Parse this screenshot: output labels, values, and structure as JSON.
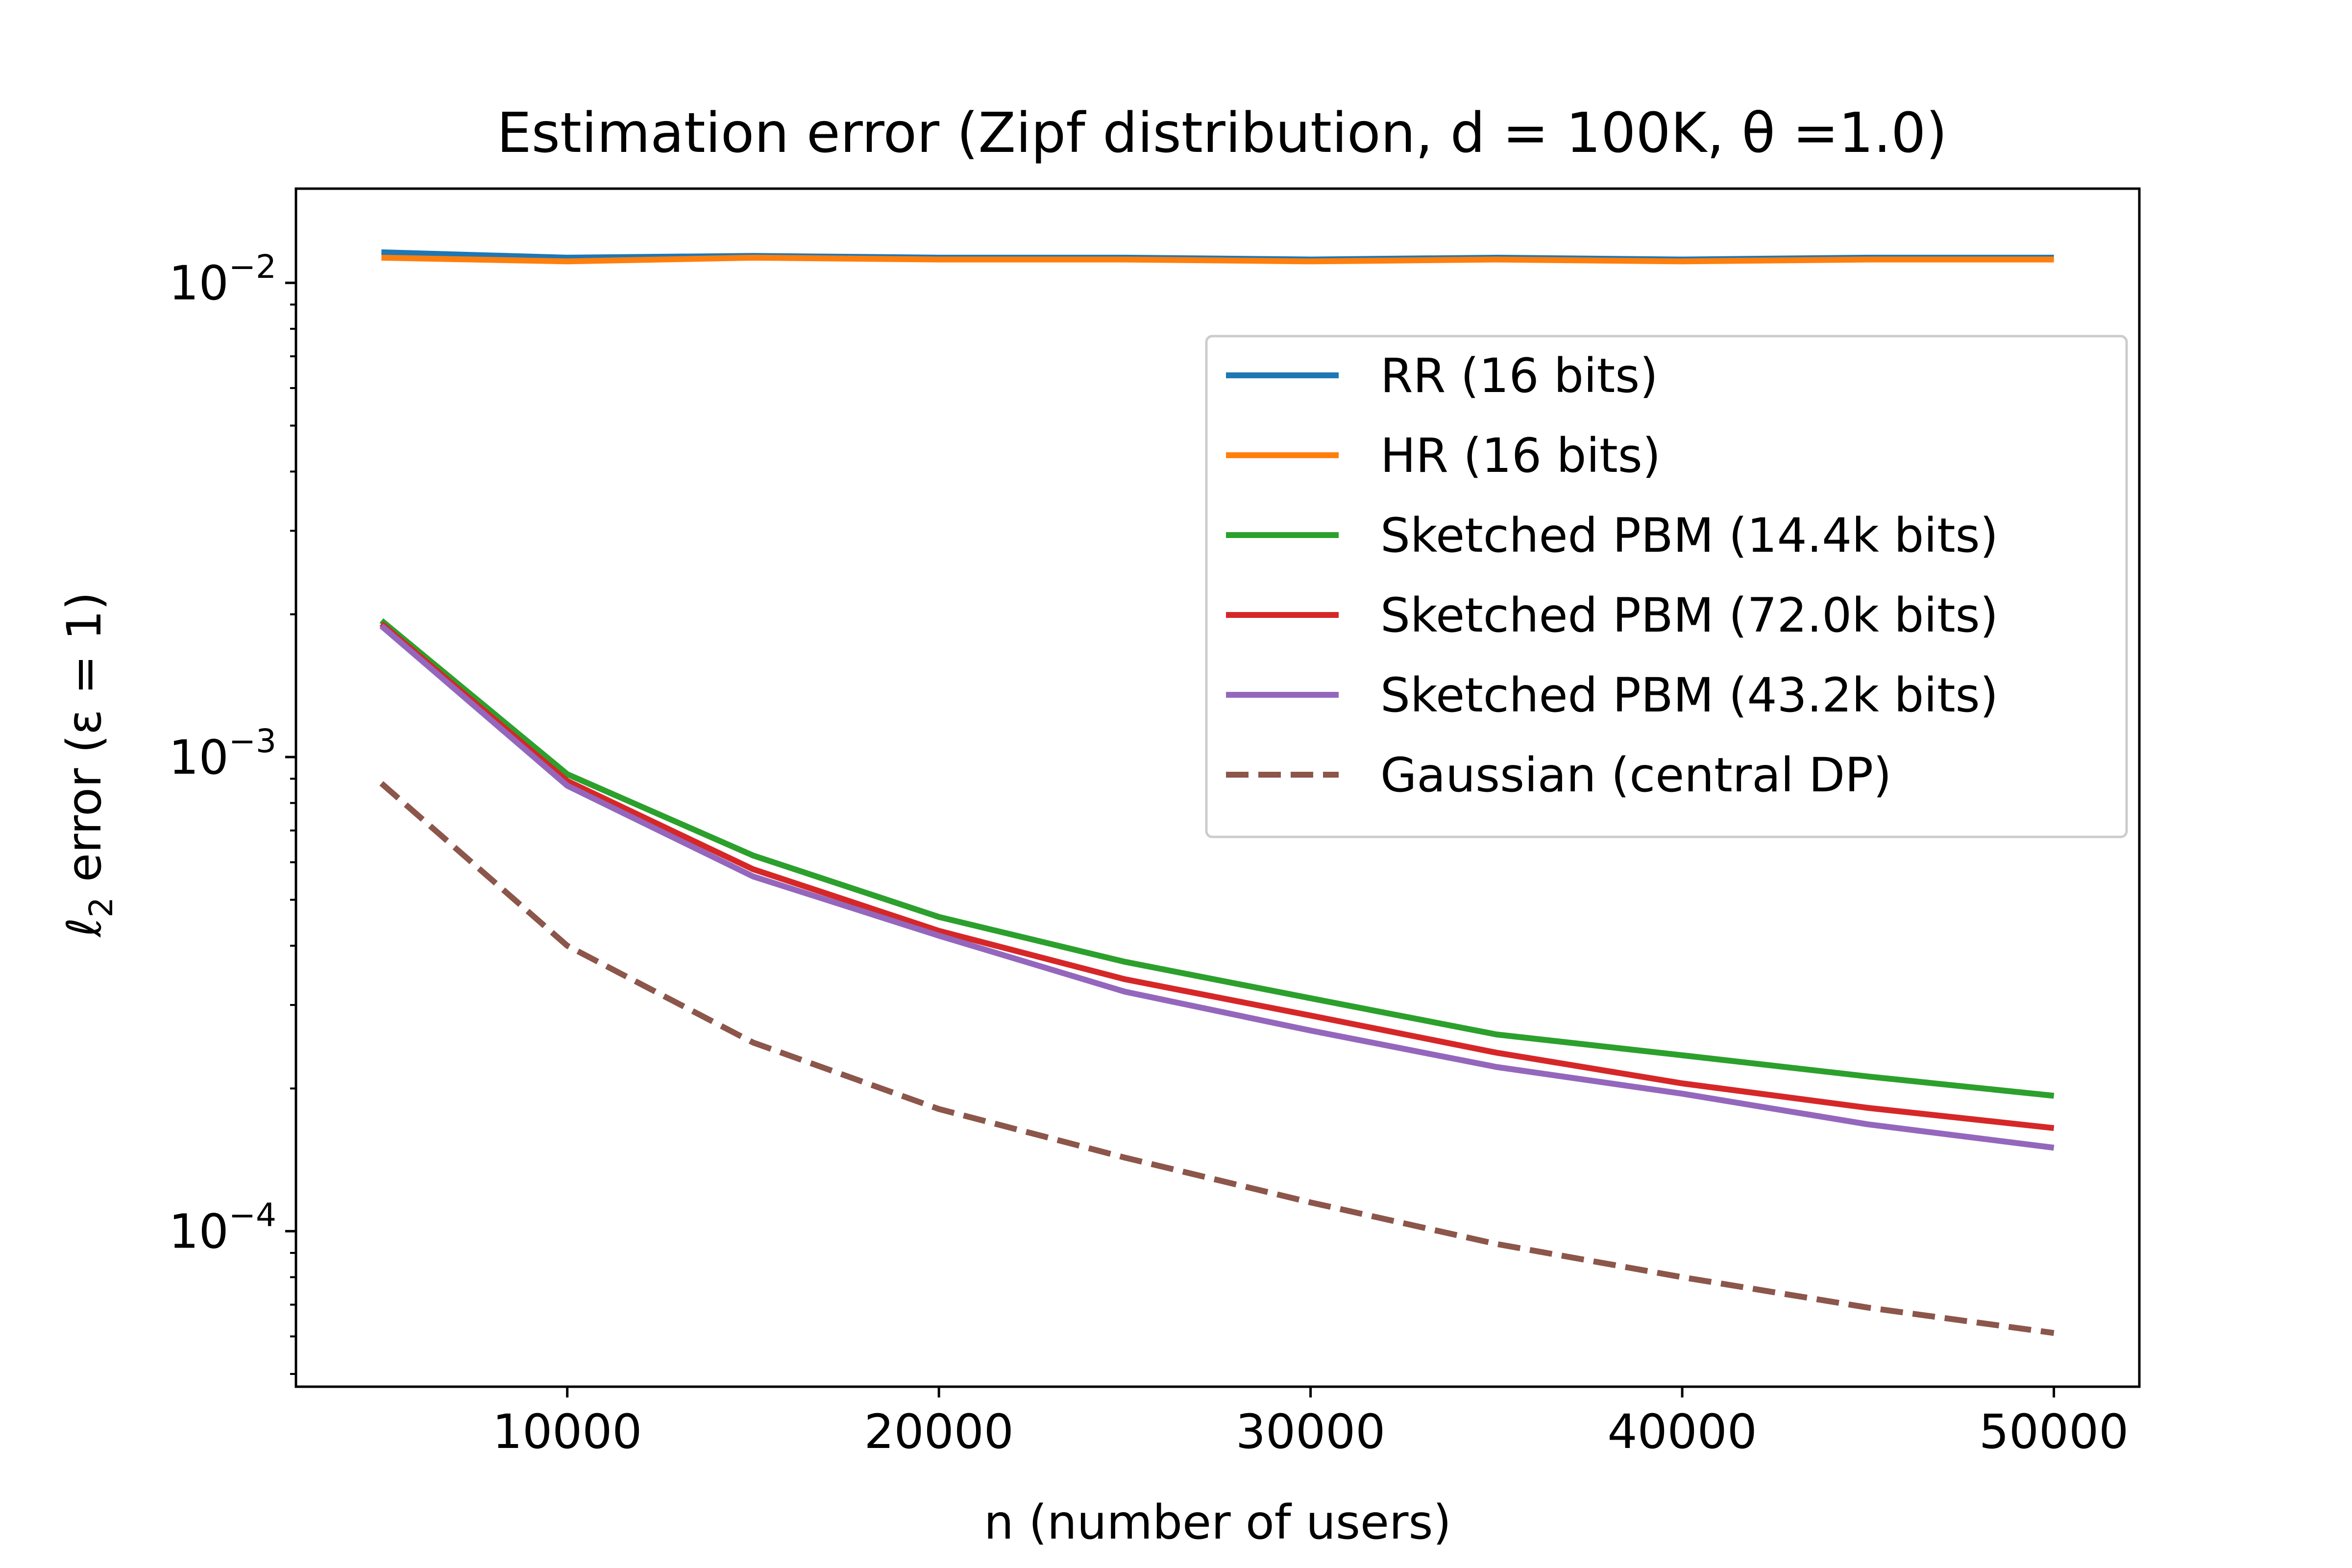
{
  "chart_data": {
    "type": "line",
    "title": "Estimation error (Zipf distribution, d = 100K, θ =1.0)",
    "xlabel": "n (number of users)",
    "ylabel_parts": {
      "ell": "ℓ",
      "sub": "2",
      "rest": " error (ε = 1)"
    },
    "yscale": "log",
    "xlim": [
      2700,
      52300
    ],
    "ylim": [
      4.7e-05,
      0.0158
    ],
    "xticks": [
      10000,
      20000,
      30000,
      40000,
      50000
    ],
    "xtick_labels": [
      "10000",
      "20000",
      "30000",
      "40000",
      "50000"
    ],
    "yticks": [
      {
        "value": 0.01,
        "base": "10",
        "exp": "−2"
      },
      {
        "value": 0.001,
        "base": "10",
        "exp": "−3"
      },
      {
        "value": 0.0001,
        "base": "10",
        "exp": "−4"
      }
    ],
    "legend_position": "upper right",
    "x": [
      5000,
      10000,
      15000,
      20000,
      25000,
      30000,
      35000,
      40000,
      45000,
      50000
    ],
    "series": [
      {
        "name": "RR (16 bits)",
        "color": "#1f77b4",
        "dash": "solid",
        "values": [
          0.0116,
          0.0113,
          0.0114,
          0.0113,
          0.0113,
          0.0112,
          0.0113,
          0.0112,
          0.0113,
          0.0113
        ]
      },
      {
        "name": "HR (16 bits)",
        "color": "#ff7f0e",
        "dash": "solid",
        "values": [
          0.0113,
          0.0111,
          0.0113,
          0.0112,
          0.0112,
          0.0111,
          0.0112,
          0.0111,
          0.0112,
          0.0112
        ]
      },
      {
        "name": "Sketched PBM (14.4k bits)",
        "color": "#2ca02c",
        "dash": "solid",
        "values": [
          0.00194,
          0.00092,
          0.00062,
          0.00046,
          0.00037,
          0.00031,
          0.00026,
          0.000235,
          0.000212,
          0.000193
        ]
      },
      {
        "name": "Sketched PBM (72.0k bits)",
        "color": "#d62728",
        "dash": "solid",
        "values": [
          0.00191,
          0.00089,
          0.00058,
          0.00043,
          0.00034,
          0.000285,
          0.000238,
          0.000205,
          0.000182,
          0.000165
        ]
      },
      {
        "name": "Sketched PBM (43.2k bits)",
        "color": "#9467bd",
        "dash": "solid",
        "values": [
          0.00189,
          0.00087,
          0.00056,
          0.00042,
          0.00032,
          0.000265,
          0.000222,
          0.000195,
          0.000168,
          0.00015
        ]
      },
      {
        "name": "Gaussian (central DP)",
        "color": "#8c564b",
        "dash": "dashed",
        "values": [
          0.00088,
          0.0004,
          0.00025,
          0.000181,
          0.000143,
          0.000115,
          9.4e-05,
          8e-05,
          6.9e-05,
          6.1e-05
        ]
      }
    ]
  }
}
